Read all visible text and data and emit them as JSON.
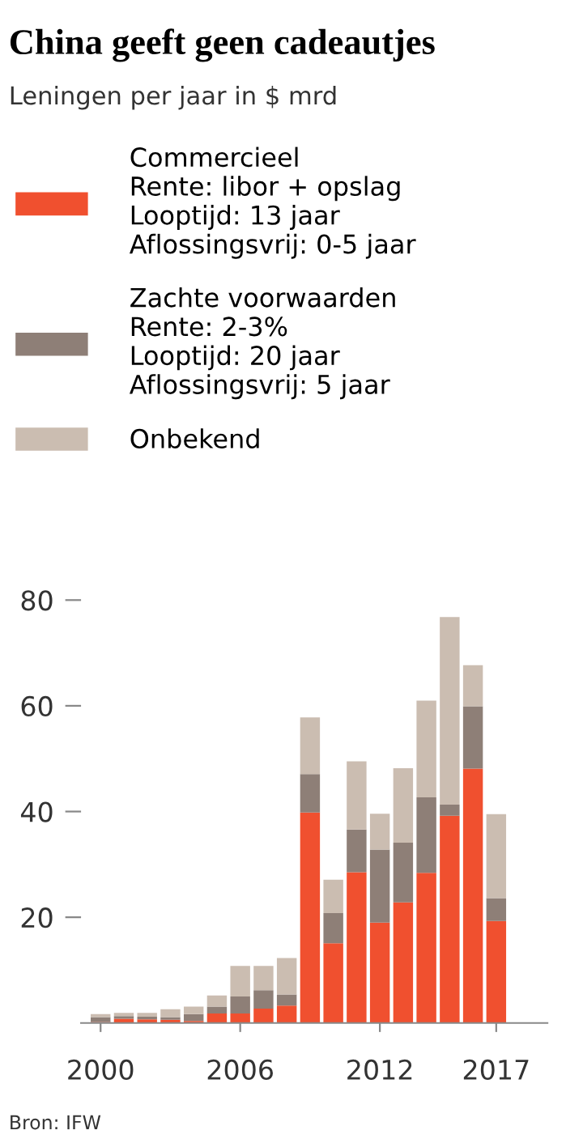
{
  "chart_data": {
    "type": "bar",
    "title": "China geeft geen cadeautjes",
    "subtitle": "Leningen per jaar in $ mrd",
    "categories": [
      "2000",
      null,
      null,
      null,
      null,
      null,
      "2006",
      null,
      null,
      null,
      null,
      null,
      "2012",
      null,
      null,
      null,
      null,
      "2017"
    ],
    "stacked": true,
    "series": [
      {
        "name": "Commercieel\nRente: libor + opslag\nLooptijd: 13 jaar\nAflossingsvrij: 0-5 jaar",
        "color": "#f0502f",
        "values": [
          0.2,
          0.8,
          0.7,
          0.6,
          0.4,
          1.8,
          1.8,
          2.7,
          3.3,
          39.8,
          15.1,
          28.5,
          19.0,
          22.8,
          28.4,
          39.2,
          48.1,
          19.3
        ]
      },
      {
        "name": "Zachte voorwaarden\nRente: 2-3%\nLooptijd: 20 jaar\nAflossingsvrij: 5 jaar",
        "color": "#8e7f77",
        "values": [
          0.9,
          0.5,
          0.5,
          0.5,
          1.3,
          1.3,
          3.2,
          3.5,
          2.1,
          7.3,
          5.7,
          8.1,
          13.8,
          11.3,
          14.3,
          2.1,
          11.8,
          4.3
        ]
      },
      {
        "name": "Onbekend",
        "color": "#cbbdb1",
        "values": [
          0.6,
          0.6,
          0.7,
          1.5,
          1.4,
          2.1,
          5.8,
          4.6,
          6.9,
          10.7,
          6.3,
          12.9,
          6.8,
          14.1,
          18.3,
          35.5,
          7.8,
          15.9
        ]
      }
    ],
    "ylim": [
      0,
      80
    ],
    "yticks": [
      20,
      40,
      60,
      80
    ],
    "grid": false,
    "legend": "top",
    "annotations": [
      "Bron: IFW"
    ]
  }
}
